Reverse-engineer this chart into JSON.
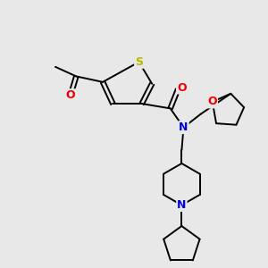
{
  "bg_color": "#e8e8e8",
  "atom_colors": {
    "S": "#b8b800",
    "N": "#0000ee",
    "O": "#ee0000",
    "C": "#000000"
  },
  "line_color": "#000000",
  "line_width": 1.4,
  "font_size_atom": 8.5,
  "figsize": [
    3.0,
    3.0
  ],
  "dpi": 100,
  "xlim": [
    20,
    290
  ],
  "ylim": [
    15,
    295
  ]
}
